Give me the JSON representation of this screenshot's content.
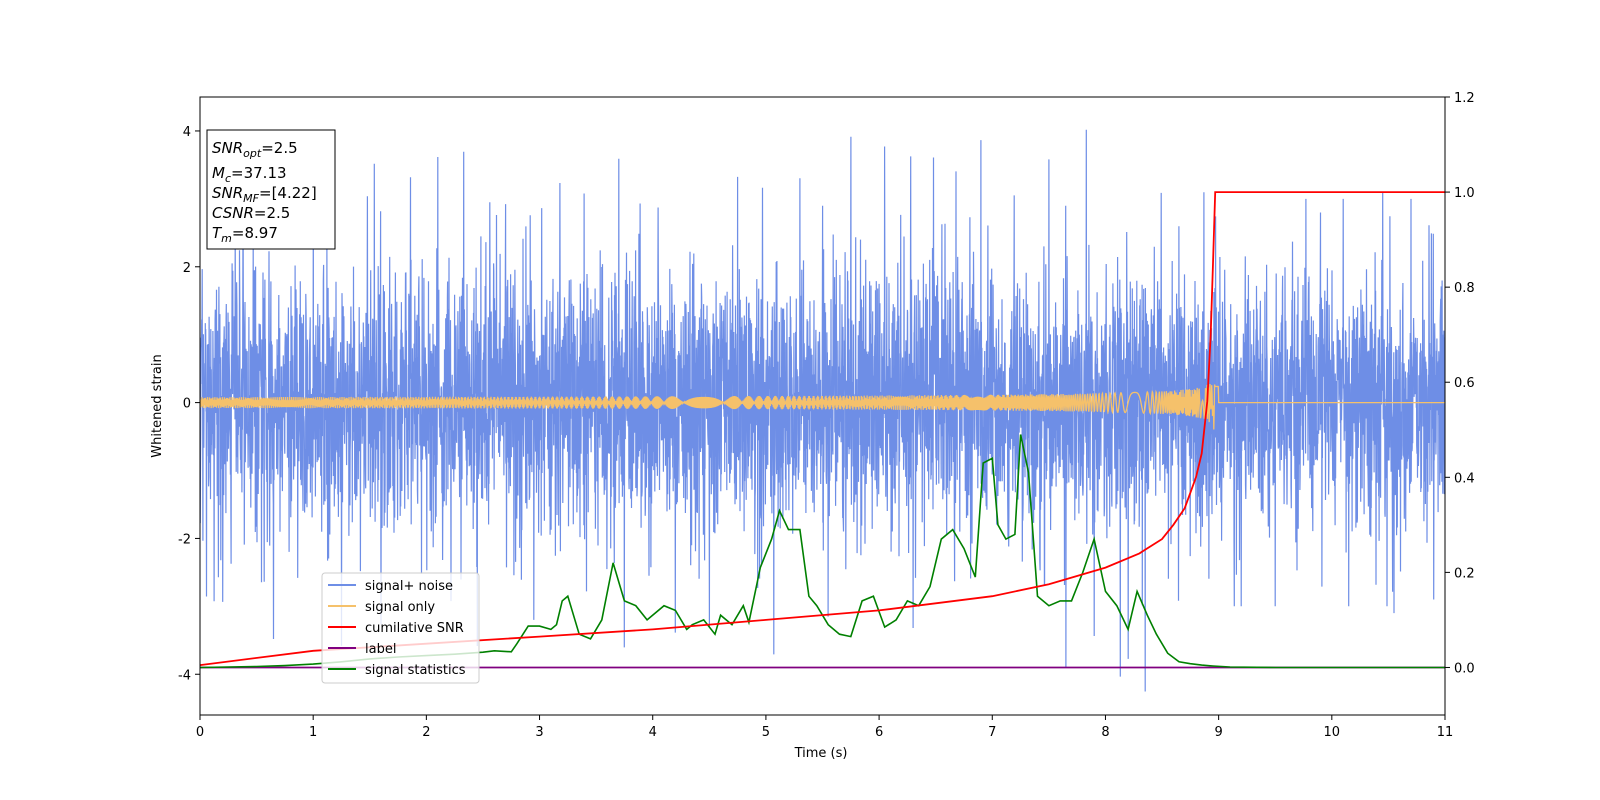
{
  "chart_data": {
    "type": "line",
    "xlabel": "Time (s)",
    "ylabel": "Whitened strain",
    "xlim": [
      0,
      11
    ],
    "ylim": [
      -4.6,
      4.5
    ],
    "y2lim": [
      -0.1,
      1.2
    ],
    "x_ticks": [
      0,
      1,
      2,
      3,
      4,
      5,
      6,
      7,
      8,
      9,
      10,
      11
    ],
    "y_ticks": [
      -4,
      -2,
      0,
      2,
      4
    ],
    "y2_ticks": [
      "0.0",
      "0.2",
      "0.4",
      "0.6",
      "0.8",
      "1.0",
      "1.2"
    ],
    "grid": false,
    "legend_position": "lower-left",
    "colors": {
      "noise": "#6e8ee6",
      "signal": "#f5c16b",
      "cumulative": "#ff0000",
      "label": "#800080",
      "statistics": "#008000"
    },
    "annotation": {
      "snr_opt": {
        "base": "SNR",
        "sub": "opt",
        "value": "=2.5"
      },
      "mc": {
        "base": "M",
        "sub": "c",
        "value": "=37.13"
      },
      "snr_mf": {
        "base": "SNR",
        "sub": "MF",
        "value": "=[4.22]"
      },
      "csnr": {
        "base": "CSNR",
        "value": "=2.5"
      },
      "tm": {
        "base": "T",
        "sub": "m",
        "value": "=8.97"
      }
    },
    "series": [
      {
        "name": "signal+ noise",
        "axis": "left",
        "std": 0.95,
        "spikes": [
          [
            7.83,
            4.1
          ],
          [
            5.75,
            4.0
          ],
          [
            6.05,
            3.85
          ],
          [
            6.28,
            3.6
          ],
          [
            6.48,
            3.5
          ],
          [
            6.68,
            3.5
          ],
          [
            6.9,
            3.8
          ],
          [
            7.5,
            3.7
          ],
          [
            2.1,
            3.7
          ],
          [
            2.33,
            3.7
          ],
          [
            1.54,
            3.45
          ],
          [
            1.86,
            3.4
          ],
          [
            3.18,
            3.2
          ],
          [
            3.7,
            3.5
          ],
          [
            3.02,
            2.9
          ],
          [
            4.75,
            3.4
          ],
          [
            4.97,
            3.2
          ],
          [
            5.3,
            3.4
          ],
          [
            5.5,
            3.0
          ],
          [
            8.87,
            3.3
          ],
          [
            9.77,
            3.0
          ],
          [
            10.1,
            3.0
          ],
          [
            10.45,
            3.1
          ],
          [
            10.7,
            3.0
          ],
          [
            9.9,
            2.8
          ],
          [
            0.38,
            2.9
          ],
          [
            1.0,
            3.0
          ],
          [
            2.7,
            3.0
          ],
          [
            8.13,
            -4.15
          ],
          [
            8.35,
            -4.1
          ],
          [
            8.2,
            -3.9
          ],
          [
            5.07,
            -3.8
          ],
          [
            7.65,
            -3.8
          ],
          [
            2.45,
            -3.5
          ],
          [
            3.75,
            -3.6
          ],
          [
            0.65,
            -3.4
          ],
          [
            1.25,
            -3.5
          ],
          [
            4.5,
            -3.4
          ],
          [
            6.3,
            -3.3
          ],
          [
            2.95,
            -3.2
          ],
          [
            9.5,
            -3.0
          ],
          [
            10.15,
            -3.0
          ],
          [
            10.55,
            -3.1
          ],
          [
            7.9,
            -3.3
          ],
          [
            4.2,
            -3.3
          ],
          [
            1.6,
            -3.3
          ],
          [
            0.2,
            -2.9
          ],
          [
            10.9,
            -2.9
          ],
          [
            5.55,
            -3.2
          ],
          [
            9.2,
            -3.0
          ]
        ]
      },
      {
        "name": "signal only",
        "axis": "left",
        "chirp": {
          "merger": 8.97,
          "amp_max": 0.55
        }
      },
      {
        "name": "cumilative SNR",
        "axis": "right",
        "x": [
          0,
          1,
          2,
          3,
          4,
          5,
          6,
          7,
          7.5,
          8,
          8.3,
          8.5,
          8.6,
          8.7,
          8.8,
          8.85,
          8.9,
          8.93,
          8.95,
          8.97,
          9.0,
          11
        ],
        "y": [
          0.005,
          0.035,
          0.05,
          0.065,
          0.08,
          0.1,
          0.12,
          0.15,
          0.175,
          0.21,
          0.24,
          0.27,
          0.3,
          0.335,
          0.4,
          0.45,
          0.56,
          0.7,
          0.85,
          1.0,
          1.0,
          1.0
        ]
      },
      {
        "name": "label",
        "axis": "right",
        "x": [
          0,
          11
        ],
        "y": [
          0.0,
          0.0
        ]
      },
      {
        "name": "signal statistics",
        "axis": "right",
        "x": [
          0,
          0.5,
          0.75,
          1.0,
          1.25,
          1.5,
          1.75,
          2.0,
          2.25,
          2.5,
          2.6,
          2.75,
          2.8,
          2.9,
          3.0,
          3.1,
          3.15,
          3.2,
          3.25,
          3.35,
          3.45,
          3.55,
          3.65,
          3.75,
          3.85,
          3.95,
          4.1,
          4.2,
          4.3,
          4.35,
          4.45,
          4.55,
          4.6,
          4.7,
          4.8,
          4.85,
          4.95,
          5.05,
          5.12,
          5.2,
          5.3,
          5.38,
          5.45,
          5.55,
          5.65,
          5.75,
          5.85,
          5.95,
          6.05,
          6.15,
          6.25,
          6.35,
          6.45,
          6.55,
          6.65,
          6.75,
          6.85,
          6.92,
          7.0,
          7.05,
          7.12,
          7.2,
          7.25,
          7.32,
          7.4,
          7.5,
          7.6,
          7.7,
          7.8,
          7.9,
          8.0,
          8.1,
          8.2,
          8.28,
          8.37,
          8.45,
          8.55,
          8.65,
          8.75,
          8.85,
          8.95,
          9.1,
          9.5,
          10.0,
          11.0
        ],
        "y": [
          0.0,
          0.002,
          0.004,
          0.007,
          0.012,
          0.018,
          0.022,
          0.025,
          0.028,
          0.032,
          0.035,
          0.033,
          0.05,
          0.087,
          0.087,
          0.08,
          0.09,
          0.14,
          0.15,
          0.07,
          0.06,
          0.1,
          0.22,
          0.14,
          0.13,
          0.1,
          0.13,
          0.12,
          0.08,
          0.09,
          0.1,
          0.07,
          0.11,
          0.09,
          0.13,
          0.095,
          0.21,
          0.27,
          0.33,
          0.29,
          0.29,
          0.15,
          0.13,
          0.09,
          0.07,
          0.065,
          0.14,
          0.15,
          0.085,
          0.1,
          0.14,
          0.13,
          0.17,
          0.27,
          0.29,
          0.25,
          0.19,
          0.43,
          0.44,
          0.3,
          0.27,
          0.28,
          0.49,
          0.41,
          0.15,
          0.13,
          0.14,
          0.14,
          0.2,
          0.27,
          0.16,
          0.13,
          0.08,
          0.16,
          0.11,
          0.07,
          0.03,
          0.012,
          0.008,
          0.005,
          0.003,
          0.001,
          0.0,
          0.0,
          0.0
        ]
      }
    ]
  }
}
